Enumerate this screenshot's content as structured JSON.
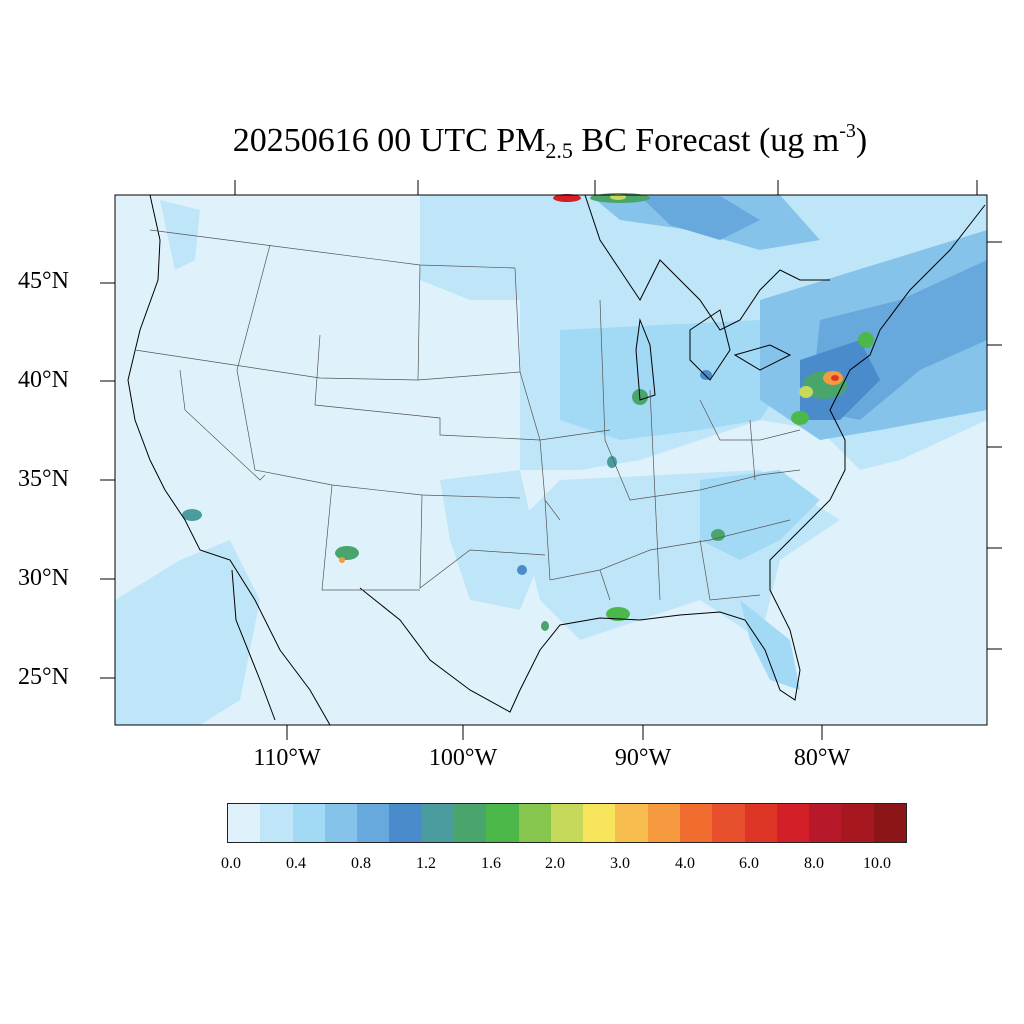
{
  "title": {
    "prefix": "20250616 00 UTC PM",
    "subscript": "2.5",
    "middle": " BC Forecast (ug m",
    "superscript": "-3",
    "suffix": ")"
  },
  "lat_labels": [
    "45°N",
    "40°N",
    "35°N",
    "30°N",
    "25°N"
  ],
  "lon_labels": [
    "110°W",
    "100°W",
    "90°W",
    "80°W"
  ],
  "colorbar": {
    "colors": [
      "#dff2fb",
      "#bfe6f8",
      "#a2d9f5",
      "#86c3ea",
      "#68a9dd",
      "#4a8ccb",
      "#4a9c9e",
      "#4aa56d",
      "#4cb84a",
      "#86c64e",
      "#c6d95a",
      "#f7e65b",
      "#f7bd4f",
      "#f59a3f",
      "#f06d2f",
      "#e84f2c",
      "#df3527",
      "#d21f28",
      "#b8192a",
      "#a6171f",
      "#8b1517"
    ],
    "labels": [
      "0.0",
      "0.4",
      "0.8",
      "1.2",
      "1.6",
      "2.0",
      "3.0",
      "4.0",
      "6.0",
      "8.0",
      "10.0"
    ]
  },
  "hotspots": [
    {
      "name": "new-york",
      "color": "#df3527"
    },
    {
      "name": "philadelphia",
      "color": "#f7bd4f"
    },
    {
      "name": "chicago",
      "color": "#4aa56d"
    },
    {
      "name": "los-angeles",
      "color": "#4a9c9e"
    },
    {
      "name": "albuquerque",
      "color": "#86c64e"
    },
    {
      "name": "new-orleans",
      "color": "#86c64e"
    },
    {
      "name": "st-louis",
      "color": "#4a9c9e"
    },
    {
      "name": "canada-fire",
      "color": "#d21f28"
    }
  ]
}
